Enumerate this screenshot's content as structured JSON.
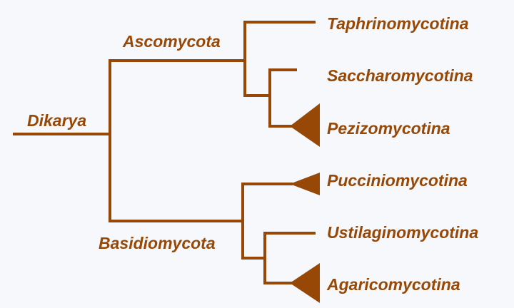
{
  "diagram": {
    "type": "phylogenetic-tree",
    "colors": {
      "line": "#974806",
      "label": "#974806",
      "background": "#f6f8fb"
    },
    "root": {
      "label": "Dikarya",
      "children": [
        {
          "label": "Ascomycota",
          "children": [
            {
              "label": "Taphrinomycotina",
              "collapsed": false
            },
            {
              "label": "Saccharomycotina",
              "collapsed": false
            },
            {
              "label": "Pezizomycotina",
              "collapsed": true
            }
          ]
        },
        {
          "label": "Basidiomycota",
          "children": [
            {
              "label": "Pucciniomycotina",
              "collapsed": true
            },
            {
              "label": "Ustilaginomycotina",
              "collapsed": false
            },
            {
              "label": "Agaricomycotina",
              "collapsed": true
            }
          ]
        }
      ]
    }
  }
}
